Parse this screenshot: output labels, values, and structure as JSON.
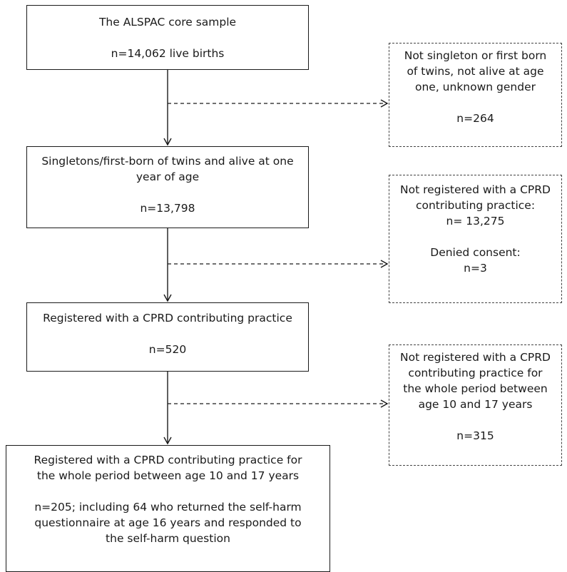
{
  "main_boxes": [
    {
      "title_lines": [
        "The ALSPAC core sample"
      ],
      "count_lines": [
        "n=14,062 live births"
      ]
    },
    {
      "title_lines": [
        "Singletons/first-born of twins and alive at one",
        "year of age"
      ],
      "count_lines": [
        "n=13,798"
      ]
    },
    {
      "title_lines": [
        "Registered with a CPRD contributing practice"
      ],
      "count_lines": [
        "n=520"
      ]
    },
    {
      "title_lines": [
        "Registered with a CPRD contributing practice for",
        "the whole period between age 10 and 17 years"
      ],
      "count_lines": [
        "n=205; including 64 who returned the self-harm",
        "questionnaire at age 16 years and responded to",
        "the self-harm question"
      ]
    }
  ],
  "exclusion_boxes": [
    {
      "title_lines": [
        "Not singleton or first born",
        "of twins, not alive at age",
        "one, unknown gender"
      ],
      "count_lines": [
        "n=264"
      ]
    },
    {
      "title_lines": [
        "Not registered with a CPRD",
        "contributing practice:",
        "n= 13,275"
      ],
      "count_lines": [
        "Denied consent:",
        "n=3"
      ]
    },
    {
      "title_lines": [
        "Not registered with a CPRD",
        "contributing practice for",
        "the whole period between",
        "age 10 and 17 years"
      ],
      "count_lines": [
        "n=315"
      ]
    }
  ]
}
